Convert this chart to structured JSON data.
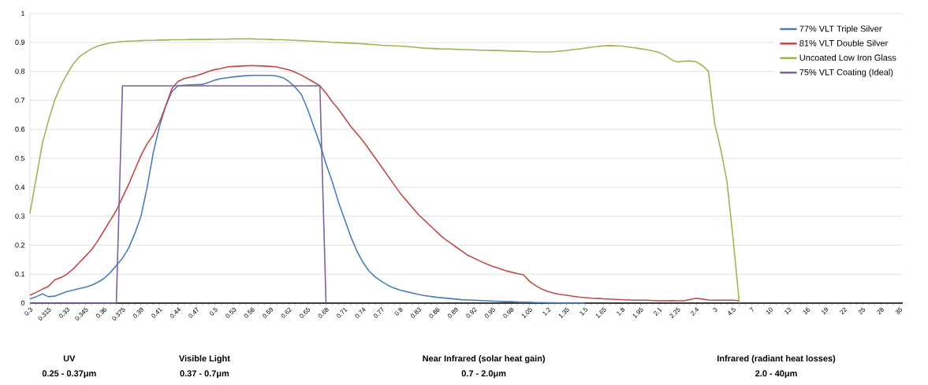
{
  "chart_data": {
    "type": "line",
    "categories": [
      "0.3",
      null,
      null,
      "0.315",
      null,
      null,
      "0.33",
      null,
      null,
      "0.345",
      null,
      null,
      "0.36",
      null,
      null,
      "0.375",
      null,
      null,
      "0.39",
      null,
      null,
      "0.41",
      null,
      null,
      "0.44",
      null,
      null,
      "0.47",
      null,
      null,
      "0.5",
      null,
      null,
      "0.53",
      null,
      null,
      "0.56",
      null,
      null,
      "0.59",
      null,
      null,
      "0.62",
      null,
      null,
      "0.65",
      null,
      null,
      "0.68",
      null,
      null,
      "0.71",
      null,
      null,
      "0.74",
      null,
      null,
      "0.77",
      null,
      null,
      "0.8",
      null,
      null,
      "0.83",
      null,
      null,
      "0.86",
      null,
      null,
      "0.89",
      null,
      null,
      "0.92",
      null,
      null,
      "0.95",
      null,
      null,
      "0.98",
      null,
      null,
      "1.05",
      null,
      null,
      "1.2",
      null,
      null,
      "1.35",
      null,
      null,
      "1.5",
      null,
      null,
      "1.65",
      null,
      null,
      "1.8",
      null,
      null,
      "1.95",
      null,
      null,
      "2.1",
      null,
      null,
      "2.25",
      null,
      null,
      "2.4",
      null,
      null,
      "3",
      null,
      null,
      "4.5",
      null,
      null,
      "7",
      null,
      null,
      "10",
      null,
      null,
      "13",
      null,
      null,
      "16",
      null,
      null,
      "19",
      null,
      null,
      "22",
      null,
      null,
      "25",
      null,
      null,
      "28",
      null,
      null,
      "35"
    ],
    "series": [
      {
        "name": "77% VLT Triple Silver",
        "color": "#4a7ebb",
        "values": [
          0.015,
          0.022,
          0.032,
          0.022,
          0.024,
          0.032,
          0.04,
          0.045,
          0.05,
          0.055,
          0.062,
          0.072,
          0.085,
          0.105,
          0.13,
          0.155,
          0.19,
          0.24,
          0.3,
          0.4,
          0.52,
          0.61,
          0.68,
          0.73,
          0.75,
          0.752,
          0.753,
          0.754,
          0.755,
          0.762,
          0.77,
          0.775,
          0.778,
          0.781,
          0.783,
          0.785,
          0.786,
          0.786,
          0.786,
          0.786,
          0.784,
          0.778,
          0.765,
          0.745,
          0.72,
          0.67,
          0.61,
          0.55,
          0.48,
          0.42,
          0.35,
          0.29,
          0.23,
          0.18,
          0.14,
          0.11,
          0.09,
          0.075,
          0.062,
          0.052,
          0.045,
          0.04,
          0.035,
          0.03,
          0.026,
          0.023,
          0.02,
          0.018,
          0.016,
          0.014,
          0.012,
          0.011,
          0.01,
          0.009,
          0.008,
          0.007,
          0.006,
          0.005,
          0.005,
          0.004,
          0.003,
          0.003,
          0.002,
          0.002,
          0.001,
          0.001,
          0,
          0,
          0,
          0,
          0,
          null,
          null,
          null,
          null,
          null,
          null,
          null,
          null,
          null,
          null,
          null,
          null,
          null,
          null,
          null,
          null,
          null,
          null,
          null,
          null,
          null,
          null,
          null,
          null,
          null,
          null,
          null,
          null,
          null,
          null,
          null,
          null,
          null,
          null,
          null,
          null,
          null,
          null,
          null,
          null,
          null,
          null,
          null,
          null,
          null,
          null,
          null,
          null,
          null,
          null,
          null
        ]
      },
      {
        "name": "81% VLT Double Silver",
        "color": "#be4b48",
        "values": [
          0.027,
          0.037,
          0.048,
          0.058,
          0.08,
          0.088,
          0.1,
          0.118,
          0.14,
          0.162,
          0.185,
          0.215,
          0.25,
          0.285,
          0.32,
          0.365,
          0.41,
          0.46,
          0.51,
          0.55,
          0.58,
          0.625,
          0.68,
          0.74,
          0.765,
          0.775,
          0.78,
          0.785,
          0.792,
          0.8,
          0.806,
          0.81,
          0.815,
          0.817,
          0.818,
          0.819,
          0.82,
          0.819,
          0.818,
          0.817,
          0.815,
          0.81,
          0.805,
          0.797,
          0.787,
          0.775,
          0.763,
          0.75,
          0.725,
          0.695,
          0.67,
          0.64,
          0.61,
          0.585,
          0.56,
          0.53,
          0.5,
          0.47,
          0.44,
          0.41,
          0.38,
          0.355,
          0.33,
          0.305,
          0.285,
          0.265,
          0.245,
          0.225,
          0.21,
          0.195,
          0.18,
          0.165,
          0.155,
          0.145,
          0.135,
          0.127,
          0.12,
          0.113,
          0.107,
          0.102,
          0.098,
          0.075,
          0.06,
          0.048,
          0.04,
          0.034,
          0.03,
          0.027,
          0.024,
          0.021,
          0.019,
          0.017,
          0.016,
          0.015,
          0.014,
          0.013,
          0.012,
          0.011,
          0.01,
          0.01,
          0.01,
          0.009,
          0.008,
          0.008,
          0.009,
          0.008,
          0.008,
          0.012,
          0.017,
          0.014,
          0.011,
          0.01,
          0.01,
          0.01,
          0.01,
          0.008,
          null,
          null,
          null,
          null,
          null,
          null,
          null,
          null,
          null,
          null,
          null,
          null,
          null,
          null,
          null,
          null,
          null,
          null,
          null,
          null,
          null,
          null,
          null,
          null,
          null,
          null
        ]
      },
      {
        "name": "Uncoated Low Iron Glass",
        "color": "#98b954",
        "values": [
          0.31,
          0.43,
          0.55,
          0.63,
          0.7,
          0.75,
          0.79,
          0.825,
          0.85,
          0.865,
          0.878,
          0.887,
          0.893,
          0.898,
          0.901,
          0.903,
          0.904,
          0.905,
          0.906,
          0.907,
          0.907,
          0.908,
          0.908,
          0.909,
          0.909,
          0.909,
          0.91,
          0.91,
          0.91,
          0.91,
          0.911,
          0.911,
          0.911,
          0.912,
          0.912,
          0.912,
          0.912,
          0.911,
          0.911,
          0.91,
          0.909,
          0.909,
          0.908,
          0.907,
          0.906,
          0.905,
          0.904,
          0.903,
          0.902,
          0.9,
          0.899,
          0.898,
          0.897,
          0.896,
          0.895,
          0.893,
          0.892,
          0.89,
          0.889,
          0.888,
          0.887,
          0.886,
          0.884,
          0.882,
          0.88,
          0.879,
          0.878,
          0.877,
          0.877,
          0.876,
          0.875,
          0.875,
          0.874,
          0.873,
          0.873,
          0.872,
          0.872,
          0.871,
          0.87,
          0.87,
          0.869,
          0.868,
          0.867,
          0.867,
          0.867,
          0.868,
          0.87,
          0.872,
          0.875,
          0.877,
          0.88,
          0.883,
          0.886,
          0.888,
          0.889,
          0.888,
          0.887,
          0.884,
          0.881,
          0.878,
          0.875,
          0.87,
          0.865,
          0.855,
          0.84,
          0.832,
          0.835,
          0.836,
          0.833,
          0.82,
          0.8,
          0.62,
          0.53,
          0.42,
          0.22,
          0,
          null,
          null,
          null,
          null,
          null,
          null,
          null,
          null,
          null,
          null,
          null,
          null,
          null,
          null,
          null,
          null,
          null,
          null,
          null,
          null,
          null,
          null,
          null,
          null,
          null,
          null
        ]
      },
      {
        "name": "75% VLT Coating (Ideal)",
        "color": "#7d60a0",
        "values": [
          0,
          0,
          0,
          0,
          0,
          0,
          0,
          0,
          0,
          0,
          0,
          0,
          0,
          0,
          0,
          0.75,
          0.75,
          0.75,
          0.75,
          0.75,
          0.75,
          0.75,
          0.75,
          0.75,
          0.75,
          0.75,
          0.75,
          0.75,
          0.75,
          0.75,
          0.75,
          0.75,
          0.75,
          0.75,
          0.75,
          0.75,
          0.75,
          0.75,
          0.75,
          0.75,
          0.75,
          0.75,
          0.75,
          0.75,
          0.75,
          0.75,
          0.75,
          0.75,
          0,
          null,
          null,
          null,
          null,
          null,
          null,
          null,
          null,
          null,
          null,
          null,
          null,
          null,
          null,
          null,
          null,
          null,
          null,
          null,
          null,
          null,
          null,
          null,
          null,
          null,
          null,
          null,
          null,
          null,
          null,
          null,
          null,
          null,
          null,
          null,
          null,
          null,
          null,
          null,
          null,
          null,
          null,
          null,
          null,
          null,
          null,
          null,
          null,
          null,
          null,
          null,
          null,
          null,
          null,
          null,
          null,
          null,
          null,
          null,
          null,
          null,
          null,
          null,
          null,
          null,
          null,
          null,
          null,
          null,
          null,
          null,
          null,
          null,
          null,
          null,
          null,
          null,
          null,
          null,
          null,
          null,
          null,
          null,
          null,
          null,
          null,
          null,
          null,
          null,
          null,
          null,
          null,
          null
        ]
      }
    ],
    "ylim": [
      0,
      1
    ],
    "yticks": [
      0,
      0.1,
      0.2,
      0.3,
      0.4,
      0.5,
      0.6,
      0.7,
      0.8,
      0.9,
      1
    ],
    "grid": "y",
    "legend": "top right",
    "annotations": [
      "UV",
      "0.25 - 0.37μm",
      "Visible Light",
      "0.37 - 0.7μm",
      "Near Infrared (solar heat gain)",
      "0.7 - 2.0μm",
      "Infrared (radiant heat losses)",
      "2.0 - 40μm"
    ]
  }
}
